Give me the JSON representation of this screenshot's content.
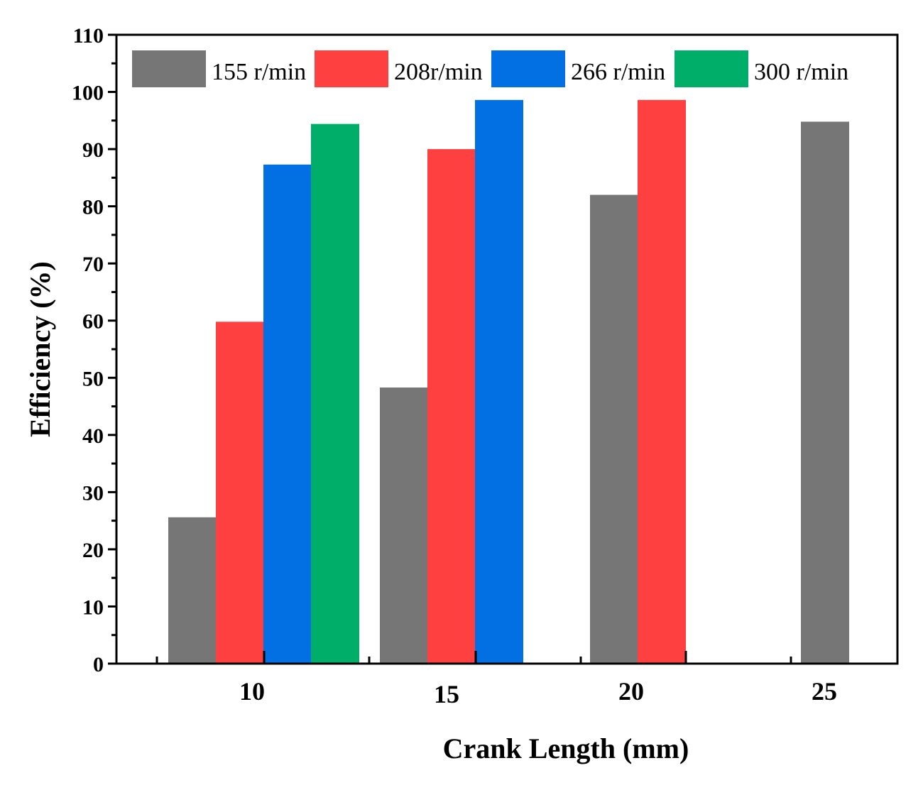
{
  "chart_data": {
    "type": "bar",
    "title": "",
    "xlabel": "Crank Length (mm)",
    "ylabel": "Efficiency (%)",
    "categories": [
      "10",
      "15",
      "20",
      "25"
    ],
    "ylim": [
      0,
      110
    ],
    "yticks": [
      0,
      10,
      20,
      30,
      40,
      50,
      60,
      70,
      80,
      90,
      100,
      110
    ],
    "legend_position": "top",
    "grid": false,
    "series": [
      {
        "name": "155 r/min",
        "color": "#767676",
        "values": [
          25.6,
          48.3,
          82.0,
          94.8
        ]
      },
      {
        "name": "208r/min",
        "color": "#fe4040",
        "values": [
          59.8,
          90.0,
          98.6,
          null
        ]
      },
      {
        "name": "266 r/min",
        "color": "#0270e2",
        "values": [
          87.3,
          98.6,
          null,
          null
        ]
      },
      {
        "name": "300 r/min",
        "color": "#00ae6a",
        "values": [
          94.4,
          null,
          null,
          null
        ]
      }
    ]
  }
}
